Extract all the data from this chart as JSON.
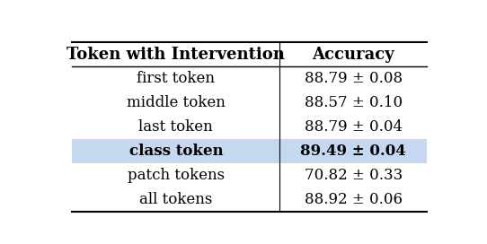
{
  "col_headers": [
    "Token with Intervention",
    "Accuracy"
  ],
  "rows": [
    {
      "token": "first token",
      "accuracy": "88.79 ± 0.08",
      "bold": false,
      "highlight": false
    },
    {
      "token": "middle token",
      "accuracy": "88.57 ± 0.10",
      "bold": false,
      "highlight": false
    },
    {
      "token": "last token",
      "accuracy": "88.79 ± 0.04",
      "bold": false,
      "highlight": false
    },
    {
      "token": "class token",
      "accuracy": "89.49 ± 0.04",
      "bold": true,
      "highlight": true
    },
    {
      "token": "patch tokens",
      "accuracy": "70.82 ± 0.33",
      "bold": false,
      "highlight": false
    },
    {
      "token": "all tokens",
      "accuracy": "88.92 ± 0.06",
      "bold": false,
      "highlight": false
    }
  ],
  "highlight_color": "#c5d8f0",
  "bg_color": "#ffffff",
  "header_fontsize": 13,
  "body_fontsize": 12,
  "fig_width": 5.42,
  "fig_height": 2.72
}
